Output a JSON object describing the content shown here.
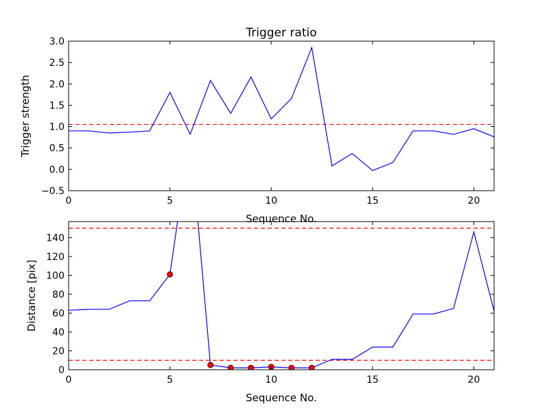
{
  "chart_data": [
    {
      "type": "line",
      "title": "Trigger ratio",
      "xlabel": "Sequence No.",
      "ylabel": "Trigger strength",
      "xlim": [
        0,
        21
      ],
      "ylim": [
        -0.5,
        3.0
      ],
      "xticks": [
        0,
        5,
        10,
        15,
        20
      ],
      "yticks": [
        -0.5,
        0.0,
        0.5,
        1.0,
        1.5,
        2.0,
        2.5,
        3.0
      ],
      "ytick_labels": [
        "−0.5",
        "0.0",
        "0.5",
        "1.0",
        "1.5",
        "2.0",
        "2.5",
        "3.0"
      ],
      "grid": false,
      "line_color": "#0000ff",
      "threshold_color": "#ff0000",
      "series": [
        {
          "x": [
            0,
            1,
            2,
            3,
            4,
            5,
            6,
            7,
            8,
            9,
            10,
            11,
            12,
            13,
            14,
            15,
            16,
            17,
            18,
            19,
            20,
            21
          ],
          "y": [
            0.9,
            0.9,
            0.85,
            0.87,
            0.9,
            1.8,
            0.82,
            2.08,
            1.31,
            2.16,
            1.18,
            1.66,
            2.85,
            0.08,
            0.37,
            -0.03,
            0.16,
            0.9,
            0.9,
            0.82,
            0.95,
            0.76
          ]
        }
      ],
      "thresholds": [
        1.05
      ]
    },
    {
      "type": "line",
      "title": "",
      "xlabel": "Sequence No.",
      "ylabel": "Distance [pix]",
      "xlim": [
        0,
        21
      ],
      "ylim": [
        0,
        157
      ],
      "xticks": [
        0,
        5,
        10,
        15,
        20
      ],
      "yticks": [
        0,
        20,
        40,
        60,
        80,
        100,
        120,
        140
      ],
      "ytick_labels": [
        "0",
        "20",
        "40",
        "60",
        "80",
        "100",
        "120",
        "140"
      ],
      "grid": false,
      "line_color": "#0000ff",
      "threshold_color": "#ff0000",
      "marker_color": "#ff0000",
      "series": [
        {
          "x": [
            0,
            1,
            2,
            3,
            4,
            5,
            6,
            7,
            8,
            9,
            10,
            11,
            12,
            13,
            14,
            15,
            16,
            17,
            18,
            19,
            20,
            21
          ],
          "y": [
            63,
            64,
            64,
            73,
            73,
            101,
            250,
            5,
            2,
            2,
            3,
            2,
            2,
            11,
            11,
            24,
            24,
            59,
            59,
            65,
            146,
            62
          ]
        }
      ],
      "markers": {
        "x": [
          5,
          7,
          8,
          9,
          10,
          11,
          12
        ],
        "y": [
          101,
          5,
          2,
          2,
          3,
          2,
          2
        ]
      },
      "thresholds": [
        150,
        10
      ]
    }
  ]
}
